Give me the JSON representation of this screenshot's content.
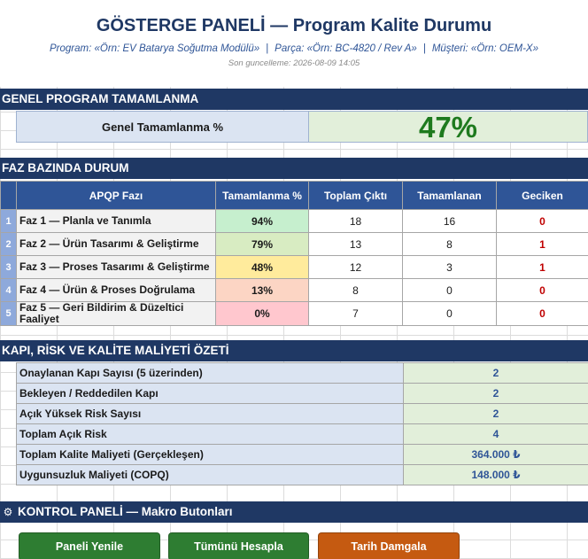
{
  "header": {
    "title": "GÖSTERGE PANELİ — Program Kalite Durumu",
    "program": "Program: «Örn: EV Batarya Soğutma Modülü»",
    "part": "Parça: «Örn: BC-4820 / Rev A»",
    "customer": "Müşteri: «Örn: OEM-X»",
    "separator": "|",
    "last_update": "Son guncelleme: 2026-08-09 14:05"
  },
  "overall": {
    "section_title": "GENEL PROGRAM TAMAMLANMA",
    "label": "Genel Tamamlanma %",
    "value": "47%"
  },
  "phases": {
    "section_title": "FAZ BAZINDA DURUM",
    "columns": [
      "APQP Fazı",
      "Tamamlanma %",
      "Toplam Çıktı",
      "Tamamlanan",
      "Geciken"
    ],
    "rows": [
      {
        "no": "1",
        "name": "Faz 1 — Planla ve Tanımla",
        "pct": "94%",
        "total": "18",
        "done": "16",
        "late": "0",
        "color": "#c6efce"
      },
      {
        "no": "2",
        "name": "Faz 2 — Ürün Tasarımı & Geliştirme",
        "pct": "79%",
        "total": "13",
        "done": "8",
        "late": "1",
        "color": "#d8ecc2"
      },
      {
        "no": "3",
        "name": "Faz 3 — Proses Tasarımı & Geliştirme",
        "pct": "48%",
        "total": "12",
        "done": "3",
        "late": "1",
        "color": "#ffeb9c"
      },
      {
        "no": "4",
        "name": "Faz 4 — Ürün & Proses Doğrulama",
        "pct": "13%",
        "total": "8",
        "done": "0",
        "late": "0",
        "color": "#fcd5c4"
      },
      {
        "no": "5",
        "name": "Faz 5 — Geri Bildirim & Düzeltici Faaliyet",
        "pct": "0%",
        "total": "7",
        "done": "0",
        "late": "0",
        "color": "#ffc7ce"
      }
    ]
  },
  "summary": {
    "section_title": "KAPI, RİSK VE KALİTE MALİYETİ ÖZETİ",
    "rows": [
      {
        "label": "Onaylanan Kapı Sayısı (5 üzerinden)",
        "value": "2"
      },
      {
        "label": "Bekleyen / Reddedilen Kapı",
        "value": "2"
      },
      {
        "label": "Açık Yüksek Risk Sayısı",
        "value": "2"
      },
      {
        "label": "Toplam Açık Risk",
        "value": "4"
      },
      {
        "label": "Toplam Kalite Maliyeti (Gerçekleşen)",
        "value": "364.000 ₺"
      },
      {
        "label": "Uygunsuzluk Maliyeti (COPQ)",
        "value": "148.000 ₺"
      }
    ]
  },
  "control": {
    "section_title": "KONTROL PANELİ — Makro Butonları",
    "icon": "gear-icon",
    "buttons": {
      "refresh": "Paneli Yenile",
      "calc_all": "Tümünü Hesapla",
      "date_stamp": "Tarih Damgala"
    }
  },
  "colors": {
    "navy": "#1f3864",
    "header_blue": "#2f5597",
    "green_button": "#2e7d32",
    "orange_button": "#c55a11",
    "overall_green": "#1e7a1e",
    "late_red": "#c00000"
  }
}
